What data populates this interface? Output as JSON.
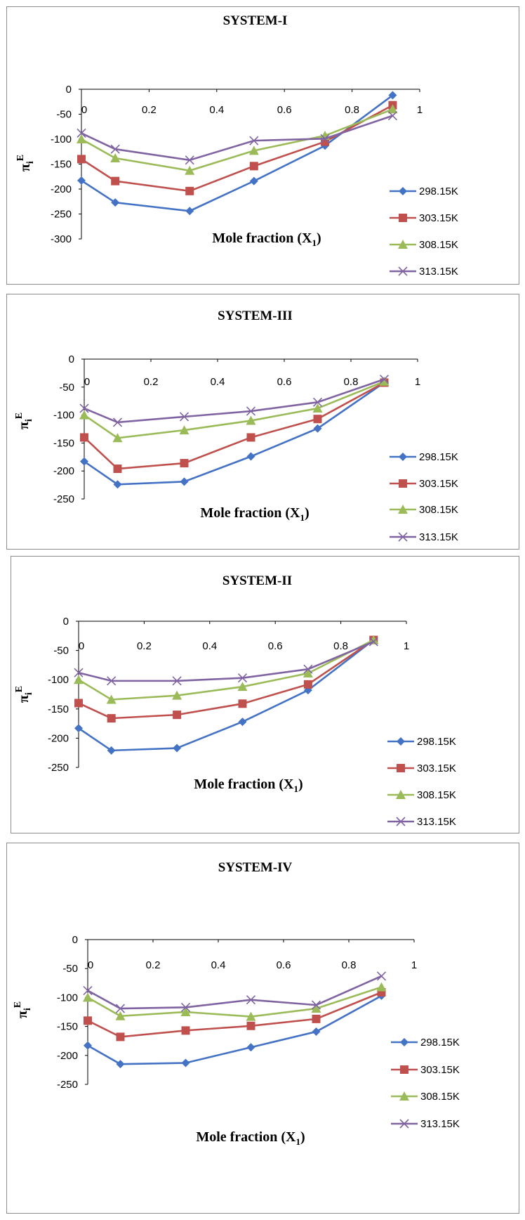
{
  "chart_data": [
    {
      "type": "line",
      "title": "SYSTEM-I",
      "xlabel": "Mole fraction (X",
      "xlabel_sub": "1",
      "xlabel_close": ")",
      "ylabel": "π",
      "ylabel_sub": "i",
      "ylabel_sup": "E",
      "xlim": [
        0,
        1
      ],
      "ylim": [
        -300,
        0
      ],
      "xticks": [
        "0",
        "0.2",
        "0.4",
        "0.6",
        "0.8",
        "1"
      ],
      "yticks": [
        "0",
        "-50",
        "-100",
        "-150",
        "-200",
        "-250",
        "-300"
      ],
      "x": [
        0.0,
        0.1,
        0.32,
        0.51,
        0.72,
        0.92
      ],
      "legend_position": "right",
      "series": [
        {
          "name": "298.15K",
          "color": "#4472C4",
          "marker": "diamond",
          "values": [
            -183,
            -227,
            -244,
            -184,
            -113,
            -12
          ]
        },
        {
          "name": "303.15K",
          "color": "#C0504D",
          "marker": "square",
          "values": [
            -140,
            -184,
            -204,
            -154,
            -105,
            -32
          ]
        },
        {
          "name": "308.15K",
          "color": "#9BBB59",
          "marker": "triangle",
          "values": [
            -100,
            -138,
            -163,
            -123,
            -93,
            -40
          ]
        },
        {
          "name": "313.15K",
          "color": "#8064A2",
          "marker": "x",
          "values": [
            -88,
            -120,
            -142,
            -103,
            -99,
            -53
          ]
        }
      ]
    },
    {
      "type": "line",
      "title": "SYSTEM-III",
      "xlabel": "Mole fraction (X",
      "xlabel_sub": "1",
      "xlabel_close": ")",
      "ylabel": "π",
      "ylabel_sub": "i",
      "ylabel_sup": "E",
      "xlim": [
        0,
        1
      ],
      "ylim": [
        -250,
        0
      ],
      "xticks": [
        "0",
        "0.2",
        "0.4",
        "0.6",
        "0.8",
        "1"
      ],
      "yticks": [
        "0",
        "-50",
        "-100",
        "-150",
        "-200",
        "-250"
      ],
      "x": [
        0.0,
        0.1,
        0.3,
        0.5,
        0.7,
        0.9
      ],
      "legend_position": "right",
      "series": [
        {
          "name": "298.15K",
          "color": "#4472C4",
          "marker": "diamond",
          "values": [
            -183,
            -224,
            -219,
            -174,
            -124,
            -42
          ]
        },
        {
          "name": "303.15K",
          "color": "#C0504D",
          "marker": "square",
          "values": [
            -140,
            -196,
            -186,
            -140,
            -107,
            -42
          ]
        },
        {
          "name": "308.15K",
          "color": "#9BBB59",
          "marker": "triangle",
          "values": [
            -100,
            -141,
            -127,
            -110,
            -88,
            -40
          ]
        },
        {
          "name": "313.15K",
          "color": "#8064A2",
          "marker": "x",
          "values": [
            -88,
            -113,
            -103,
            -93,
            -77,
            -36
          ]
        }
      ]
    },
    {
      "type": "line",
      "title": "SYSTEM-II",
      "xlabel": "Mole fraction (X",
      "xlabel_sub": "1",
      "xlabel_close": ")",
      "ylabel": "π",
      "ylabel_sub": "i",
      "ylabel_sup": "E",
      "xlim": [
        0,
        1
      ],
      "ylim": [
        -250,
        0
      ],
      "xticks": [
        "0",
        "0.2",
        "0.4",
        "0.6",
        "0.8",
        "1"
      ],
      "yticks": [
        "0",
        "-50",
        "-100",
        "-150",
        "-200",
        "-250"
      ],
      "x": [
        0.0,
        0.1,
        0.3,
        0.5,
        0.7,
        0.9
      ],
      "legend_position": "right",
      "series": [
        {
          "name": "298.15K",
          "color": "#4472C4",
          "marker": "diamond",
          "values": [
            -183,
            -221,
            -217,
            -172,
            -118,
            -32
          ]
        },
        {
          "name": "303.15K",
          "color": "#C0504D",
          "marker": "square",
          "values": [
            -140,
            -166,
            -160,
            -141,
            -108,
            -32
          ]
        },
        {
          "name": "308.15K",
          "color": "#9BBB59",
          "marker": "triangle",
          "values": [
            -100,
            -134,
            -127,
            -112,
            -89,
            -32
          ]
        },
        {
          "name": "313.15K",
          "color": "#8064A2",
          "marker": "x",
          "values": [
            -88,
            -102,
            -102,
            -97,
            -82,
            -35
          ]
        }
      ]
    },
    {
      "type": "line",
      "title": "SYSTEM-IV",
      "xlabel": "Mole fraction (X",
      "xlabel_sub": "1",
      "xlabel_close": ")",
      "ylabel": "π",
      "ylabel_sub": "i",
      "ylabel_sup": "E",
      "xlim": [
        0,
        1
      ],
      "ylim": [
        -250,
        0
      ],
      "xticks": [
        "0",
        "0.2",
        "0.4",
        "0.6",
        "0.8",
        "1"
      ],
      "yticks": [
        "0",
        "-50",
        "-100",
        "-150",
        "-200",
        "-250"
      ],
      "x": [
        0.0,
        0.1,
        0.3,
        0.5,
        0.7,
        0.9
      ],
      "legend_position": "right",
      "series": [
        {
          "name": "298.15K",
          "color": "#4472C4",
          "marker": "diamond",
          "values": [
            -183,
            -215,
            -213,
            -186,
            -159,
            -97
          ]
        },
        {
          "name": "303.15K",
          "color": "#C0504D",
          "marker": "square",
          "values": [
            -140,
            -168,
            -157,
            -149,
            -137,
            -91
          ]
        },
        {
          "name": "308.15K",
          "color": "#9BBB59",
          "marker": "triangle",
          "values": [
            -100,
            -132,
            -125,
            -133,
            -119,
            -82
          ]
        },
        {
          "name": "313.15K",
          "color": "#8064A2",
          "marker": "x",
          "values": [
            -88,
            -119,
            -117,
            -104,
            -113,
            -63
          ]
        }
      ]
    }
  ]
}
